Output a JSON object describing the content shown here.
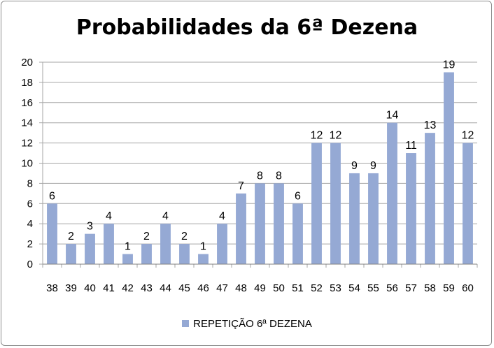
{
  "chart_data": {
    "type": "bar",
    "title": "Probabilidades da 6ª Dezena",
    "categories": [
      "38",
      "39",
      "40",
      "41",
      "42",
      "43",
      "44",
      "45",
      "46",
      "47",
      "48",
      "49",
      "50",
      "51",
      "52",
      "53",
      "54",
      "55",
      "56",
      "57",
      "58",
      "59",
      "60"
    ],
    "series": [
      {
        "name": "REPETIÇÃO 6ª DEZENA",
        "values": [
          6,
          2,
          3,
          4,
          1,
          2,
          4,
          2,
          1,
          4,
          7,
          8,
          8,
          6,
          12,
          12,
          9,
          9,
          14,
          11,
          13,
          19,
          12
        ]
      }
    ],
    "ylim": [
      0,
      20
    ],
    "yticks": [
      "0",
      "2",
      "4",
      "6",
      "8",
      "10",
      "12",
      "14",
      "16",
      "18",
      "20"
    ],
    "grid": true,
    "legend_position": "bottom",
    "bar_color": "#95a9d4",
    "grid_color": "#a6a6a6"
  }
}
